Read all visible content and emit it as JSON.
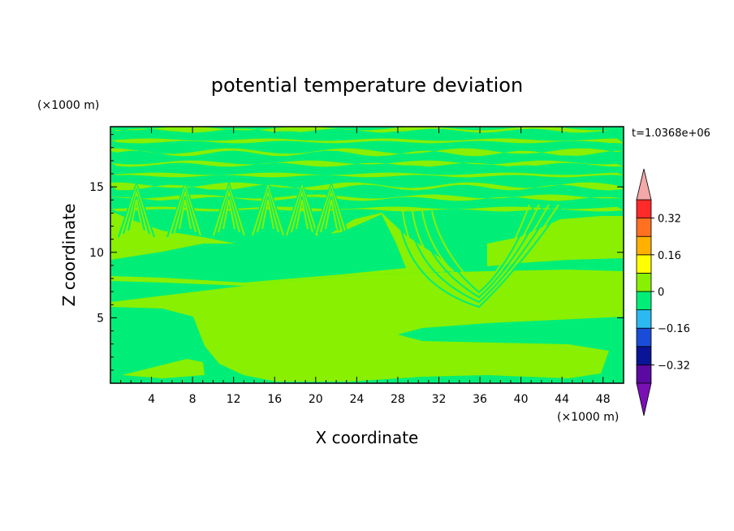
{
  "chart_data": {
    "type": "heatmap",
    "title": "potential temperature deviation",
    "time_label": "t=1.0368e+06",
    "xlabel": "X coordinate",
    "ylabel": "Z coordinate",
    "x_unit": "(×1000 m)",
    "y_unit": "(×1000 m)",
    "xlim": [
      0,
      50
    ],
    "ylim": [
      0,
      19.6
    ],
    "x_ticks": [
      4,
      8,
      12,
      16,
      20,
      24,
      28,
      32,
      36,
      40,
      44,
      48
    ],
    "y_ticks": [
      5,
      10,
      15
    ],
    "colorbar": {
      "levels": [
        -0.4,
        -0.32,
        -0.24,
        -0.16,
        -0.08,
        0,
        0.08,
        0.16,
        0.24,
        0.32,
        0.4
      ],
      "tick_labels": [
        "0.32",
        "0.16",
        "0",
        "−0.16",
        "−0.32"
      ],
      "tick_values": [
        0.32,
        0.16,
        0,
        -0.16,
        -0.32
      ],
      "colors": [
        "#5a0aa0",
        "#0a1496",
        "#1a4cd8",
        "#2cb8f0",
        "#00ee78",
        "#88f000",
        "#ffff00",
        "#ffb000",
        "#ff7020",
        "#ff2a2a"
      ],
      "under_color": "#7a10b4",
      "over_color": "#f4a8a8"
    },
    "field": {
      "description_values": "dominant values: 0 to +0.08 (light green) and -0.08 to 0 (green)",
      "positive_color": "#88f000",
      "negative_color": "#00ee78",
      "stripe_color": "#00ee78"
    }
  }
}
